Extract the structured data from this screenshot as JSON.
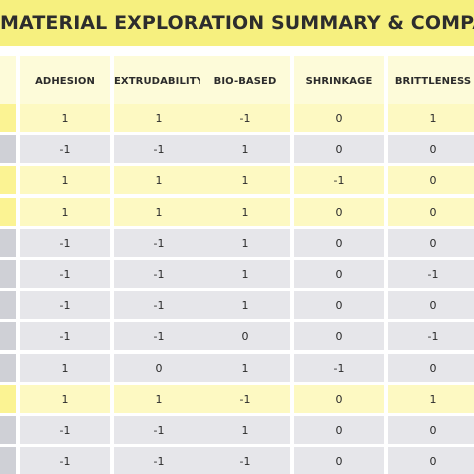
{
  "title": "MATERIAL EXPLORATION SUMMARY & COMPARISON",
  "columns": [
    "ADHESION",
    "EXTRUDABILITY",
    "BIO-BASED",
    "SHRINKAGE",
    "BRITTLENESS"
  ],
  "rows": [
    {
      "shade": "yellow",
      "values": [
        "1",
        "1",
        "-1",
        "0",
        "1"
      ]
    },
    {
      "shade": "gray",
      "values": [
        "-1",
        "-1",
        "1",
        "0",
        "0"
      ]
    },
    {
      "shade": "yellow",
      "values": [
        "1",
        "1",
        "1",
        "-1",
        "0"
      ]
    },
    {
      "shade": "yellow",
      "values": [
        "1",
        "1",
        "1",
        "0",
        "0"
      ]
    },
    {
      "shade": "gray",
      "values": [
        "-1",
        "-1",
        "1",
        "0",
        "0"
      ]
    },
    {
      "shade": "gray",
      "values": [
        "-1",
        "-1",
        "1",
        "0",
        "-1"
      ]
    },
    {
      "shade": "gray",
      "values": [
        "-1",
        "-1",
        "1",
        "0",
        "0"
      ]
    },
    {
      "shade": "gray",
      "values": [
        "-1",
        "-1",
        "0",
        "0",
        "-1"
      ]
    },
    {
      "shade": "gray",
      "values": [
        "1",
        "0",
        "1",
        "-1",
        "0"
      ]
    },
    {
      "shade": "yellow",
      "values": [
        "1",
        "1",
        "-1",
        "0",
        "1"
      ]
    },
    {
      "shade": "gray",
      "values": [
        "-1",
        "-1",
        "1",
        "0",
        "0"
      ]
    },
    {
      "shade": "gray",
      "values": [
        "-1",
        "-1",
        "-1",
        "0",
        "0"
      ]
    }
  ],
  "colors": {
    "banner": "#f6f07f",
    "header_cell": "#fdfbd9",
    "row_yellow": "#fdf9c2",
    "row_yellow_stub": "#fbf393",
    "row_gray": "#e6e6ea",
    "row_gray_stub": "#cfd0d6"
  }
}
